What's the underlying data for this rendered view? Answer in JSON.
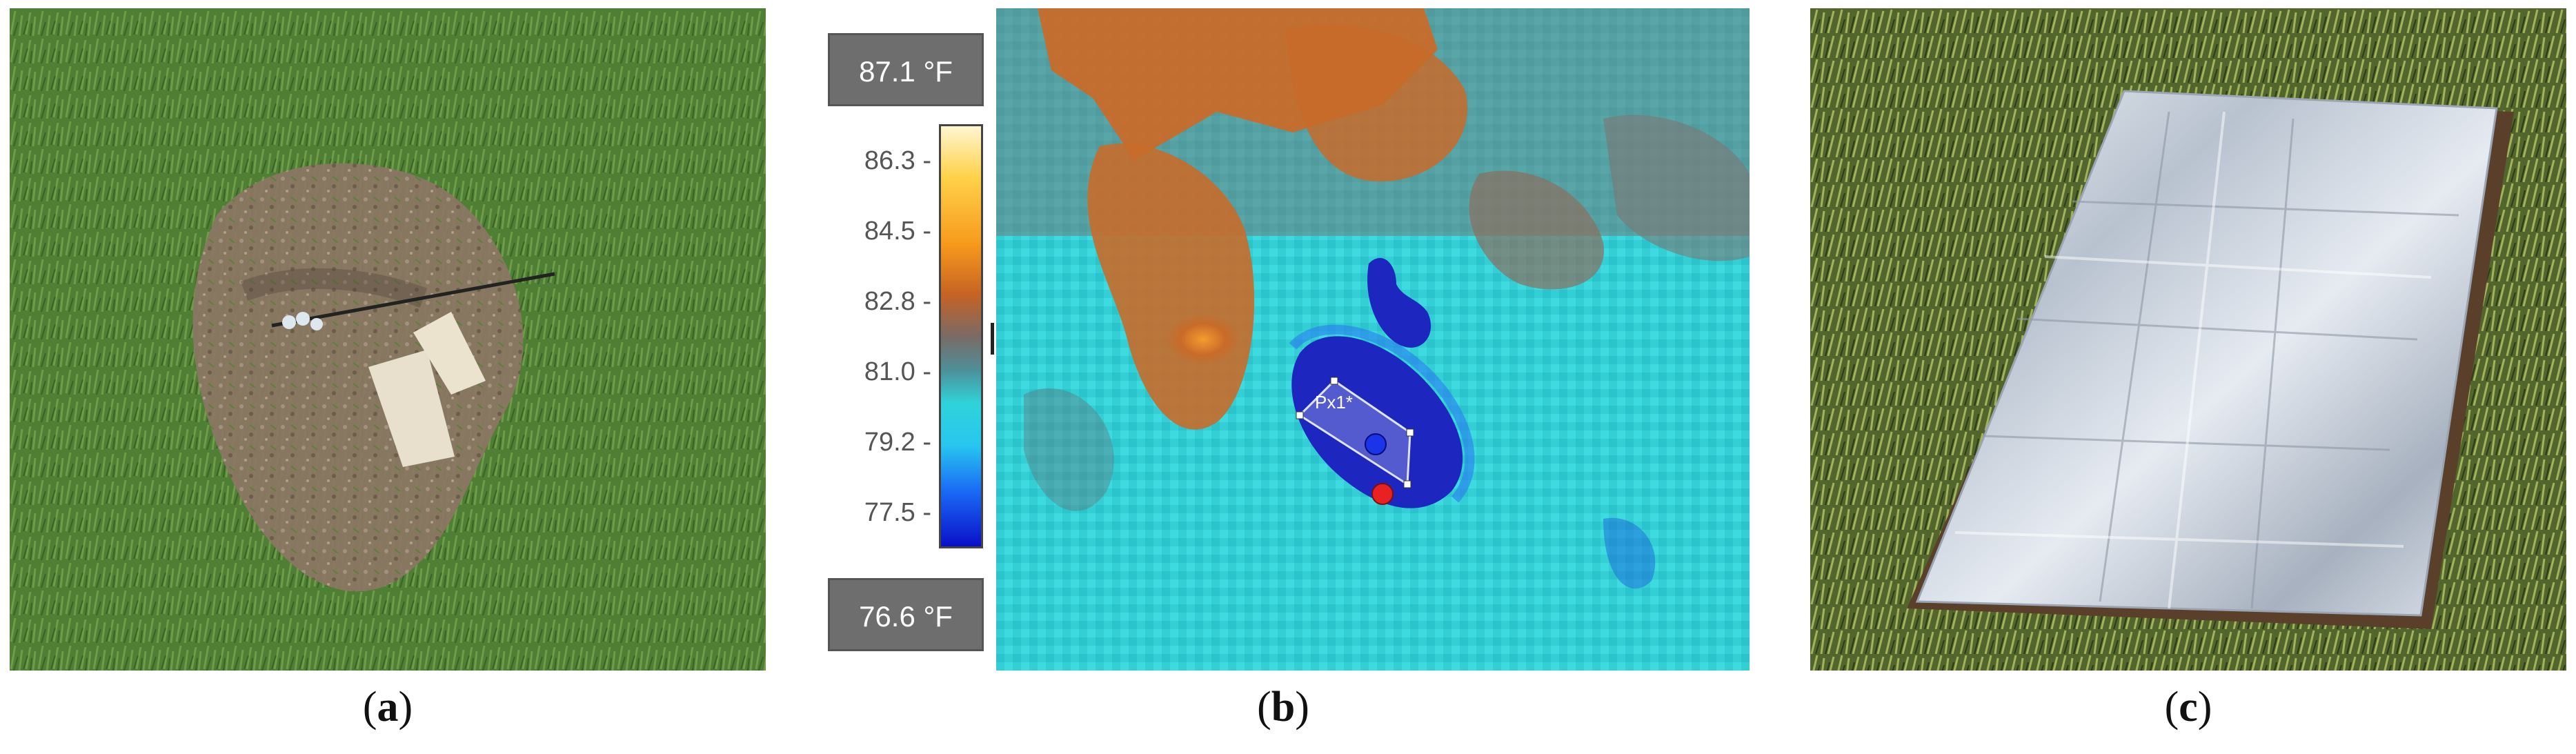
{
  "figure": {
    "panels": [
      {
        "id": "a",
        "caption_open": "(",
        "caption_letter": "a",
        "caption_close": ")",
        "description": "aerial-photo-grass-bare-soil-reflectors"
      },
      {
        "id": "b",
        "caption_open": "(",
        "caption_letter": "b",
        "caption_close": ")",
        "description": "thermal-image-with-colorbar",
        "max_temp": "87.1 °F",
        "min_temp": "76.6 °F",
        "scale_ticks": [
          "86.3 -",
          "84.5 -",
          "82.8 -",
          "81.0 -",
          "79.2 -",
          "77.5 -"
        ],
        "roi_label": "Px1*"
      },
      {
        "id": "c",
        "caption_open": "(",
        "caption_letter": "c",
        "caption_close": ")",
        "description": "aluminum-foil-reflector-on-grass"
      }
    ]
  },
  "colors": {
    "grass": "#4e7a34",
    "soil": "#8b7a66",
    "thermal_cyan": "#2fd0d6",
    "thermal_orange": "#c86b2a",
    "thermal_blue": "#1d27c0",
    "foil": "#c9d2de"
  }
}
